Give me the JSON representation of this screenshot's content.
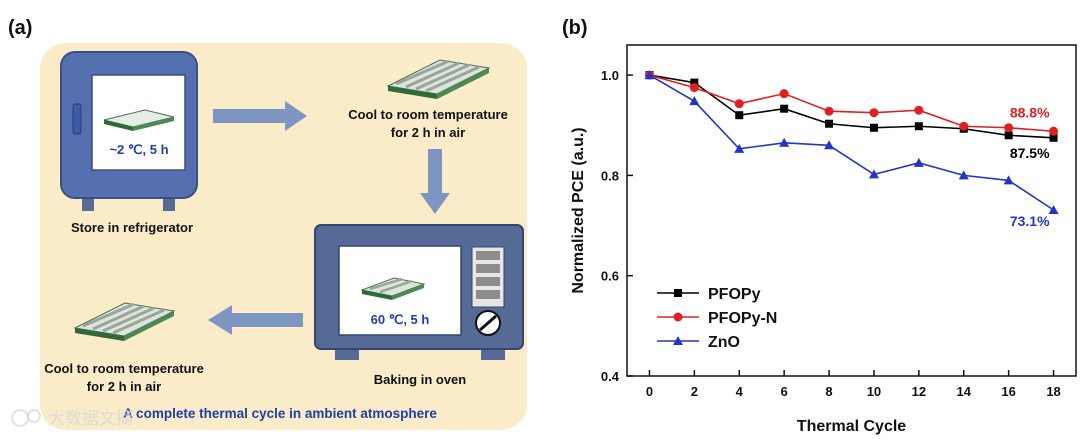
{
  "panel_a": {
    "label": "(a)",
    "store": "Store in refrigerator",
    "fridge_condition": "~2 ℃, 5 h",
    "cool1_line1": "Cool to room temperature",
    "cool1_line2": "for 2 h in air",
    "oven_condition": "60 ℃, 5 h",
    "baking": "Baking in oven",
    "cool2_line1": "Cool to room temperature",
    "cool2_line2": "for 2 h in air",
    "caption": "A complete thermal cycle in ambient atmosphere",
    "watermark": "大数据文摘",
    "colors": {
      "panel_bg": "#fbecc9",
      "fridge": "#5470b0",
      "arrow": "#7e96c2",
      "text_blue": "#1f3fa8"
    }
  },
  "panel_b": {
    "label": "(b)"
  },
  "chart_data": {
    "type": "line",
    "xlabel": "Thermal Cycle",
    "ylabel": "Normalized PCE (a.u.)",
    "xlim": [
      -1,
      19
    ],
    "ylim": [
      0.4,
      1.06
    ],
    "xticks": [
      0,
      2,
      4,
      6,
      8,
      10,
      12,
      14,
      16,
      18
    ],
    "yticks": [
      0.4,
      0.6,
      0.8,
      1.0
    ],
    "ytick_labels": [
      "0.4",
      "0.6",
      "0.8",
      "1.0"
    ],
    "x": [
      0,
      2,
      4,
      6,
      8,
      10,
      12,
      14,
      16,
      18
    ],
    "legend_position": "bottom-left",
    "series": [
      {
        "name": "PFOPy",
        "color": "#000000",
        "marker": "square",
        "values": [
          1.0,
          0.985,
          0.92,
          0.933,
          0.903,
          0.895,
          0.898,
          0.893,
          0.88,
          0.875
        ],
        "end_label": "87.5%"
      },
      {
        "name": "PFOPy-N",
        "color": "#e02020",
        "marker": "circle",
        "values": [
          1.0,
          0.975,
          0.943,
          0.963,
          0.928,
          0.925,
          0.93,
          0.898,
          0.895,
          0.888
        ],
        "end_label": "88.8%"
      },
      {
        "name": "ZnO",
        "color": "#2434c8",
        "marker": "triangle",
        "values": [
          1.0,
          0.948,
          0.853,
          0.865,
          0.86,
          0.802,
          0.825,
          0.8,
          0.79,
          0.731
        ],
        "end_label": "73.1%"
      }
    ]
  }
}
